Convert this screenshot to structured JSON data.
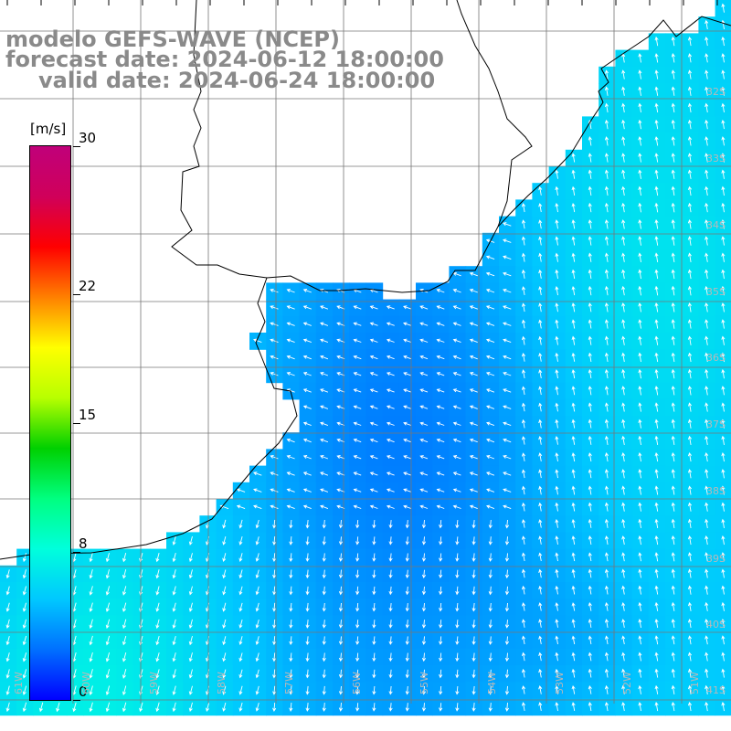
{
  "header": {
    "title": "modelo GEFS-WAVE (NCEP)",
    "forecast": "forecast date: 2024-06-12 18:00:00",
    "valid": "valid date: 2024-06-24 18:00:00"
  },
  "colorbar": {
    "unit": "[m/s]",
    "ticks": [
      {
        "value": 30,
        "label": "30"
      },
      {
        "value": 22,
        "label": "22"
      },
      {
        "value": 15,
        "label": "15"
      },
      {
        "value": 8,
        "label": "8"
      },
      {
        "value": 0,
        "label": "0"
      }
    ],
    "colors": [
      "#0000ff",
      "#0070ff",
      "#00c8ff",
      "#00ffdc",
      "#00ff80",
      "#00d000",
      "#b8ff00",
      "#ffff00",
      "#ff8000",
      "#ff0000",
      "#d0005a",
      "#c0007a"
    ]
  },
  "lat_labels": [
    "32S",
    "33S",
    "34S",
    "35S",
    "36S",
    "37S",
    "38S",
    "39S",
    "40S",
    "41S"
  ],
  "lon_labels": [
    "61W",
    "60W",
    "59W",
    "58W",
    "57W",
    "56W",
    "55W",
    "54W",
    "53W",
    "52W",
    "51W"
  ],
  "map": {
    "land_color": "#ffffff",
    "grid_color": "#777777",
    "arrow_color": "#ffffff"
  }
}
